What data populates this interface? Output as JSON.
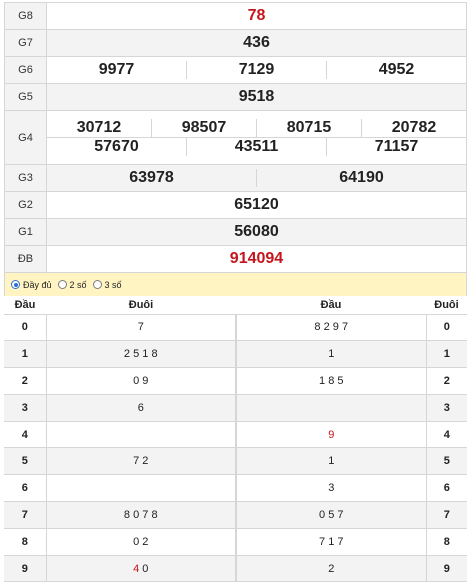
{
  "prizes": {
    "g8": {
      "label": "G8",
      "values": [
        "78"
      ]
    },
    "g7": {
      "label": "G7",
      "values": [
        "436"
      ]
    },
    "g6": {
      "label": "G6",
      "values": [
        "9977",
        "7129",
        "4952"
      ]
    },
    "g5": {
      "label": "G5",
      "values": [
        "9518"
      ]
    },
    "g4": {
      "label": "G4",
      "line1": [
        "30712",
        "98507",
        "80715",
        "20782"
      ],
      "line2": [
        "57670",
        "43511",
        "71157"
      ]
    },
    "g3": {
      "label": "G3",
      "values": [
        "63978",
        "64190"
      ]
    },
    "g2": {
      "label": "G2",
      "values": [
        "65120"
      ]
    },
    "g1": {
      "label": "G1",
      "values": [
        "56080"
      ]
    },
    "db": {
      "label": "ĐB",
      "values": [
        "914094"
      ]
    }
  },
  "options": {
    "full": "Đầy đủ",
    "two": "2 số",
    "three": "3 số",
    "selected": "full"
  },
  "loto_headers": {
    "dau_left": "Đầu",
    "duoi_left": "Đuôi",
    "dau_right": "Đầu",
    "duoi_right": "Đuôi"
  },
  "loto_rows": [
    {
      "head": "0",
      "tails": "7",
      "heads": "8 2 9 7",
      "tail": "0"
    },
    {
      "head": "1",
      "tails": "2 5 1 8",
      "heads": "1",
      "tail": "1"
    },
    {
      "head": "2",
      "tails": "0 9",
      "heads": "1 8 5",
      "tail": "2"
    },
    {
      "head": "3",
      "tails": "6",
      "heads": "",
      "tail": "3"
    },
    {
      "head": "4",
      "tails": "",
      "heads": "9",
      "tail": "4"
    },
    {
      "head": "5",
      "tails": "7 2",
      "heads": "1",
      "tail": "5"
    },
    {
      "head": "6",
      "tails": "",
      "heads": "3",
      "tail": "6"
    },
    {
      "head": "7",
      "tails": "8 0 7 8",
      "heads": "0 5 7",
      "tail": "7"
    },
    {
      "head": "8",
      "tails": "0 2",
      "heads": "7 1 7",
      "tail": "8"
    },
    {
      "head": "9",
      "tails": "4 0",
      "heads": "2",
      "tail": "9"
    }
  ],
  "colors": {
    "special": "#c4161c",
    "option_bar": "#fff4c2",
    "radio_selected": "#2a6fd6"
  }
}
